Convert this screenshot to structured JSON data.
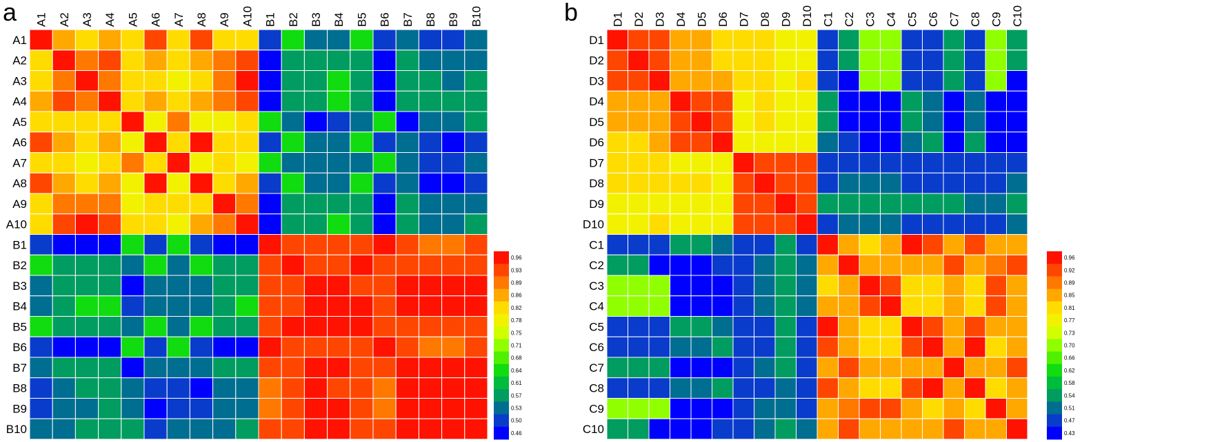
{
  "chart_data": [
    {
      "type": "heatmap",
      "panel_label": "a",
      "categories_x": [
        "A1",
        "A2",
        "A3",
        "A4",
        "A5",
        "A6",
        "A7",
        "A8",
        "A9",
        "A10",
        "B1",
        "B2",
        "B3",
        "B4",
        "B5",
        "B6",
        "B7",
        "B8",
        "B9",
        "B10"
      ],
      "categories_y": [
        "A1",
        "A2",
        "A3",
        "A4",
        "A5",
        "A6",
        "A7",
        "A8",
        "A9",
        "A10",
        "B1",
        "B2",
        "B3",
        "B4",
        "B5",
        "B6",
        "B7",
        "B8",
        "B9",
        "B10"
      ],
      "colorbar_ticks": [
        "0.96",
        "0.93",
        "0.89",
        "0.86",
        "0.82",
        "0.78",
        "0.75",
        "0.71",
        "0.68",
        "0.64",
        "0.61",
        "0.57",
        "0.53",
        "0.50",
        "0.46"
      ],
      "value_range": [
        0.46,
        0.96
      ],
      "values": [
        [
          0.96,
          0.86,
          0.82,
          0.86,
          0.82,
          0.93,
          0.82,
          0.93,
          0.82,
          0.82,
          0.5,
          0.64,
          0.53,
          0.53,
          0.64,
          0.5,
          0.53,
          0.5,
          0.5,
          0.53
        ],
        [
          0.82,
          0.96,
          0.89,
          0.93,
          0.82,
          0.86,
          0.82,
          0.86,
          0.89,
          0.93,
          0.46,
          0.57,
          0.57,
          0.57,
          0.57,
          0.46,
          0.57,
          0.53,
          0.53,
          0.53
        ],
        [
          0.82,
          0.89,
          0.96,
          0.89,
          0.82,
          0.82,
          0.78,
          0.82,
          0.89,
          0.96,
          0.46,
          0.57,
          0.57,
          0.64,
          0.57,
          0.46,
          0.57,
          0.57,
          0.53,
          0.57
        ],
        [
          0.86,
          0.93,
          0.89,
          0.96,
          0.82,
          0.86,
          0.82,
          0.86,
          0.89,
          0.93,
          0.46,
          0.57,
          0.57,
          0.64,
          0.57,
          0.46,
          0.57,
          0.57,
          0.57,
          0.57
        ],
        [
          0.82,
          0.82,
          0.82,
          0.82,
          0.96,
          0.78,
          0.89,
          0.78,
          0.78,
          0.82,
          0.64,
          0.53,
          0.46,
          0.5,
          0.53,
          0.64,
          0.46,
          0.53,
          0.53,
          0.57
        ],
        [
          0.93,
          0.86,
          0.82,
          0.86,
          0.78,
          0.96,
          0.82,
          0.96,
          0.82,
          0.82,
          0.5,
          0.64,
          0.53,
          0.53,
          0.64,
          0.5,
          0.53,
          0.5,
          0.46,
          0.5
        ],
        [
          0.82,
          0.82,
          0.78,
          0.82,
          0.89,
          0.82,
          0.96,
          0.78,
          0.82,
          0.78,
          0.64,
          0.53,
          0.53,
          0.53,
          0.53,
          0.64,
          0.53,
          0.5,
          0.5,
          0.53
        ],
        [
          0.93,
          0.86,
          0.82,
          0.86,
          0.78,
          0.96,
          0.78,
          0.96,
          0.82,
          0.86,
          0.5,
          0.64,
          0.53,
          0.53,
          0.64,
          0.5,
          0.53,
          0.46,
          0.46,
          0.5
        ],
        [
          0.82,
          0.89,
          0.89,
          0.89,
          0.78,
          0.82,
          0.82,
          0.82,
          0.96,
          0.89,
          0.46,
          0.57,
          0.57,
          0.57,
          0.57,
          0.46,
          0.57,
          0.53,
          0.53,
          0.53
        ],
        [
          0.82,
          0.93,
          0.96,
          0.93,
          0.82,
          0.82,
          0.78,
          0.86,
          0.89,
          0.96,
          0.46,
          0.57,
          0.57,
          0.64,
          0.57,
          0.46,
          0.57,
          0.53,
          0.53,
          0.57
        ],
        [
          0.5,
          0.46,
          0.46,
          0.46,
          0.64,
          0.5,
          0.64,
          0.5,
          0.46,
          0.46,
          0.96,
          0.93,
          0.93,
          0.93,
          0.93,
          0.96,
          0.93,
          0.89,
          0.89,
          0.93
        ],
        [
          0.64,
          0.57,
          0.57,
          0.57,
          0.53,
          0.64,
          0.53,
          0.64,
          0.57,
          0.57,
          0.93,
          0.96,
          0.93,
          0.93,
          0.96,
          0.93,
          0.93,
          0.93,
          0.93,
          0.93
        ],
        [
          0.53,
          0.57,
          0.57,
          0.57,
          0.46,
          0.53,
          0.53,
          0.53,
          0.57,
          0.57,
          0.93,
          0.93,
          0.96,
          0.96,
          0.93,
          0.93,
          0.96,
          0.96,
          0.96,
          0.96
        ],
        [
          0.53,
          0.57,
          0.64,
          0.64,
          0.5,
          0.53,
          0.53,
          0.53,
          0.57,
          0.64,
          0.93,
          0.93,
          0.96,
          0.96,
          0.96,
          0.93,
          0.96,
          0.96,
          0.96,
          0.96
        ],
        [
          0.64,
          0.57,
          0.57,
          0.57,
          0.53,
          0.64,
          0.53,
          0.64,
          0.57,
          0.57,
          0.93,
          0.96,
          0.96,
          0.96,
          0.96,
          0.93,
          0.93,
          0.93,
          0.93,
          0.93
        ],
        [
          0.5,
          0.46,
          0.46,
          0.46,
          0.64,
          0.5,
          0.64,
          0.5,
          0.46,
          0.46,
          0.96,
          0.93,
          0.93,
          0.93,
          0.93,
          0.96,
          0.93,
          0.89,
          0.89,
          0.93
        ],
        [
          0.53,
          0.57,
          0.57,
          0.57,
          0.46,
          0.53,
          0.53,
          0.53,
          0.57,
          0.57,
          0.93,
          0.93,
          0.96,
          0.96,
          0.93,
          0.93,
          0.96,
          0.96,
          0.96,
          0.96
        ],
        [
          0.5,
          0.53,
          0.57,
          0.57,
          0.53,
          0.5,
          0.5,
          0.46,
          0.53,
          0.53,
          0.89,
          0.93,
          0.96,
          0.93,
          0.93,
          0.89,
          0.96,
          0.96,
          0.96,
          0.96
        ],
        [
          0.5,
          0.53,
          0.53,
          0.57,
          0.53,
          0.46,
          0.5,
          0.5,
          0.53,
          0.53,
          0.89,
          0.93,
          0.96,
          0.96,
          0.93,
          0.89,
          0.96,
          0.96,
          0.96,
          0.96
        ],
        [
          0.53,
          0.53,
          0.57,
          0.57,
          0.57,
          0.5,
          0.53,
          0.53,
          0.53,
          0.57,
          0.93,
          0.93,
          0.96,
          0.96,
          0.93,
          0.93,
          0.96,
          0.96,
          0.96,
          0.96
        ]
      ]
    },
    {
      "type": "heatmap",
      "panel_label": "b",
      "categories_x": [
        "D1",
        "D2",
        "D3",
        "D4",
        "D5",
        "D6",
        "D7",
        "D8",
        "D9",
        "D10",
        "C1",
        "C2",
        "C3",
        "C4",
        "C5",
        "C6",
        "C7",
        "C8",
        "C9",
        "C10"
      ],
      "categories_y": [
        "D1",
        "D2",
        "D3",
        "D4",
        "D5",
        "D6",
        "D7",
        "D8",
        "D9",
        "D10",
        "C1",
        "C2",
        "C3",
        "C4",
        "C5",
        "C6",
        "C7",
        "C8",
        "C9",
        "C10"
      ],
      "colorbar_ticks": [
        "0.96",
        "0.92",
        "0.89",
        "0.85",
        "0.81",
        "0.77",
        "0.73",
        "0.70",
        "0.66",
        "0.62",
        "0.58",
        "0.54",
        "0.51",
        "0.47",
        "0.43"
      ],
      "value_range": [
        0.43,
        0.96
      ],
      "values": [
        [
          0.96,
          0.92,
          0.92,
          0.85,
          0.85,
          0.81,
          0.81,
          0.81,
          0.77,
          0.77,
          0.47,
          0.54,
          0.7,
          0.7,
          0.47,
          0.47,
          0.54,
          0.47,
          0.7,
          0.54
        ],
        [
          0.92,
          0.96,
          0.92,
          0.85,
          0.85,
          0.81,
          0.81,
          0.81,
          0.77,
          0.77,
          0.47,
          0.54,
          0.7,
          0.7,
          0.47,
          0.47,
          0.54,
          0.47,
          0.7,
          0.54
        ],
        [
          0.92,
          0.92,
          0.96,
          0.85,
          0.85,
          0.85,
          0.81,
          0.81,
          0.77,
          0.81,
          0.47,
          0.43,
          0.7,
          0.7,
          0.47,
          0.47,
          0.54,
          0.47,
          0.7,
          0.43
        ],
        [
          0.85,
          0.85,
          0.85,
          0.96,
          0.92,
          0.92,
          0.77,
          0.81,
          0.77,
          0.77,
          0.54,
          0.43,
          0.43,
          0.43,
          0.54,
          0.51,
          0.43,
          0.51,
          0.43,
          0.43
        ],
        [
          0.85,
          0.85,
          0.85,
          0.92,
          0.96,
          0.92,
          0.77,
          0.81,
          0.77,
          0.77,
          0.54,
          0.43,
          0.43,
          0.43,
          0.54,
          0.51,
          0.43,
          0.51,
          0.43,
          0.43
        ],
        [
          0.81,
          0.81,
          0.85,
          0.92,
          0.92,
          0.96,
          0.77,
          0.77,
          0.77,
          0.77,
          0.51,
          0.47,
          0.43,
          0.43,
          0.51,
          0.54,
          0.43,
          0.54,
          0.43,
          0.43
        ],
        [
          0.81,
          0.81,
          0.81,
          0.77,
          0.77,
          0.77,
          0.96,
          0.92,
          0.92,
          0.92,
          0.47,
          0.47,
          0.47,
          0.47,
          0.47,
          0.47,
          0.47,
          0.47,
          0.47,
          0.47
        ],
        [
          0.81,
          0.81,
          0.81,
          0.81,
          0.81,
          0.77,
          0.92,
          0.96,
          0.92,
          0.92,
          0.47,
          0.51,
          0.51,
          0.51,
          0.47,
          0.47,
          0.47,
          0.47,
          0.47,
          0.51
        ],
        [
          0.77,
          0.77,
          0.77,
          0.77,
          0.77,
          0.77,
          0.92,
          0.92,
          0.96,
          0.92,
          0.54,
          0.54,
          0.54,
          0.54,
          0.54,
          0.54,
          0.54,
          0.51,
          0.51,
          0.54
        ],
        [
          0.77,
          0.77,
          0.81,
          0.77,
          0.77,
          0.77,
          0.92,
          0.92,
          0.92,
          0.96,
          0.47,
          0.51,
          0.51,
          0.51,
          0.47,
          0.47,
          0.47,
          0.47,
          0.47,
          0.51
        ],
        [
          0.47,
          0.47,
          0.47,
          0.54,
          0.54,
          0.51,
          0.47,
          0.47,
          0.54,
          0.47,
          0.96,
          0.85,
          0.81,
          0.85,
          0.96,
          0.92,
          0.85,
          0.92,
          0.85,
          0.85
        ],
        [
          0.54,
          0.54,
          0.43,
          0.43,
          0.43,
          0.47,
          0.47,
          0.51,
          0.54,
          0.51,
          0.85,
          0.96,
          0.85,
          0.85,
          0.85,
          0.85,
          0.92,
          0.85,
          0.89,
          0.92
        ],
        [
          0.7,
          0.7,
          0.7,
          0.43,
          0.43,
          0.43,
          0.47,
          0.51,
          0.54,
          0.51,
          0.81,
          0.85,
          0.96,
          0.92,
          0.81,
          0.81,
          0.85,
          0.81,
          0.92,
          0.85
        ],
        [
          0.7,
          0.7,
          0.7,
          0.43,
          0.43,
          0.43,
          0.47,
          0.51,
          0.54,
          0.51,
          0.85,
          0.85,
          0.92,
          0.96,
          0.81,
          0.81,
          0.85,
          0.81,
          0.92,
          0.85
        ],
        [
          0.47,
          0.47,
          0.47,
          0.54,
          0.54,
          0.51,
          0.47,
          0.47,
          0.54,
          0.47,
          0.96,
          0.85,
          0.81,
          0.81,
          0.96,
          0.92,
          0.85,
          0.92,
          0.85,
          0.85
        ],
        [
          0.47,
          0.47,
          0.47,
          0.51,
          0.51,
          0.54,
          0.47,
          0.47,
          0.54,
          0.47,
          0.92,
          0.85,
          0.81,
          0.81,
          0.92,
          0.96,
          0.85,
          0.96,
          0.81,
          0.85
        ],
        [
          0.54,
          0.54,
          0.54,
          0.43,
          0.43,
          0.43,
          0.47,
          0.51,
          0.54,
          0.47,
          0.85,
          0.92,
          0.85,
          0.85,
          0.85,
          0.85,
          0.96,
          0.85,
          0.85,
          0.92
        ],
        [
          0.47,
          0.47,
          0.47,
          0.51,
          0.51,
          0.54,
          0.47,
          0.47,
          0.51,
          0.47,
          0.92,
          0.85,
          0.81,
          0.81,
          0.92,
          0.96,
          0.85,
          0.96,
          0.81,
          0.85
        ],
        [
          0.7,
          0.7,
          0.7,
          0.43,
          0.43,
          0.43,
          0.47,
          0.51,
          0.51,
          0.47,
          0.85,
          0.89,
          0.92,
          0.92,
          0.85,
          0.81,
          0.85,
          0.81,
          0.96,
          0.85
        ],
        [
          0.54,
          0.54,
          0.43,
          0.43,
          0.43,
          0.47,
          0.47,
          0.51,
          0.54,
          0.51,
          0.85,
          0.92,
          0.85,
          0.85,
          0.85,
          0.85,
          0.92,
          0.85,
          0.85,
          0.96
        ]
      ]
    }
  ],
  "colorbar_colors": [
    "#ff1200",
    "#ff4600",
    "#ff7800",
    "#ffa800",
    "#ffdc00",
    "#f2f200",
    "#d2ff00",
    "#90ff00",
    "#50f000",
    "#10dc10",
    "#00bc3c",
    "#009c60",
    "#006e90",
    "#0a3ccc",
    "#0000ff"
  ]
}
